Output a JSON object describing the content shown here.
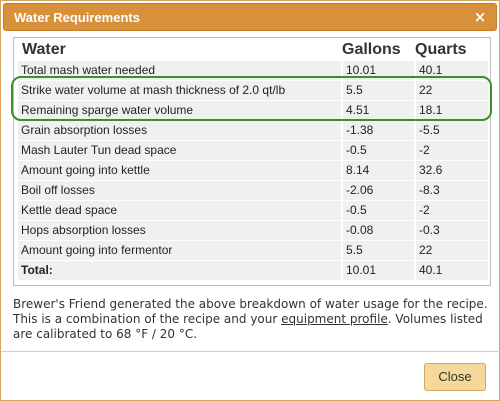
{
  "dialog": {
    "title": "Water Requirements",
    "close_icon_glyph": "×"
  },
  "table": {
    "headers": [
      "Water",
      "Gallons",
      "Quarts"
    ],
    "rows": [
      {
        "label": "Total mash water needed",
        "gallons": "10.01",
        "quarts": "40.1"
      },
      {
        "label": "Strike water volume at mash thickness of 2.0 qt/lb",
        "gallons": "5.5",
        "quarts": "22"
      },
      {
        "label": "Remaining sparge water volume",
        "gallons": "4.51",
        "quarts": "18.1"
      },
      {
        "label": "Grain absorption losses",
        "gallons": "-1.38",
        "quarts": "-5.5"
      },
      {
        "label": "Mash Lauter Tun dead space",
        "gallons": "-0.5",
        "quarts": "-2"
      },
      {
        "label": "Amount going into kettle",
        "gallons": "8.14",
        "quarts": "32.6"
      },
      {
        "label": "Boil off losses",
        "gallons": "-2.06",
        "quarts": "-8.3"
      },
      {
        "label": "Kettle dead space",
        "gallons": "-0.5",
        "quarts": "-2"
      },
      {
        "label": "Hops absorption losses",
        "gallons": "-0.08",
        "quarts": "-0.3"
      },
      {
        "label": "Amount going into fermentor",
        "gallons": "5.5",
        "quarts": "22"
      }
    ],
    "total": {
      "label": "Total:",
      "gallons": "10.01",
      "quarts": "40.1"
    }
  },
  "note": {
    "text_before": "Brewer's Friend generated the above breakdown of water usage for the recipe. This is a combination of the recipe and your ",
    "link": "equipment profile",
    "text_after": ". Volumes listed are calibrated to 68 °F / 20 °C."
  },
  "footer": {
    "close_label": "Close"
  },
  "colors": {
    "titlebar": "#d8913a",
    "highlight_outline": "#3e8e2e",
    "button": "#f6d89a"
  }
}
